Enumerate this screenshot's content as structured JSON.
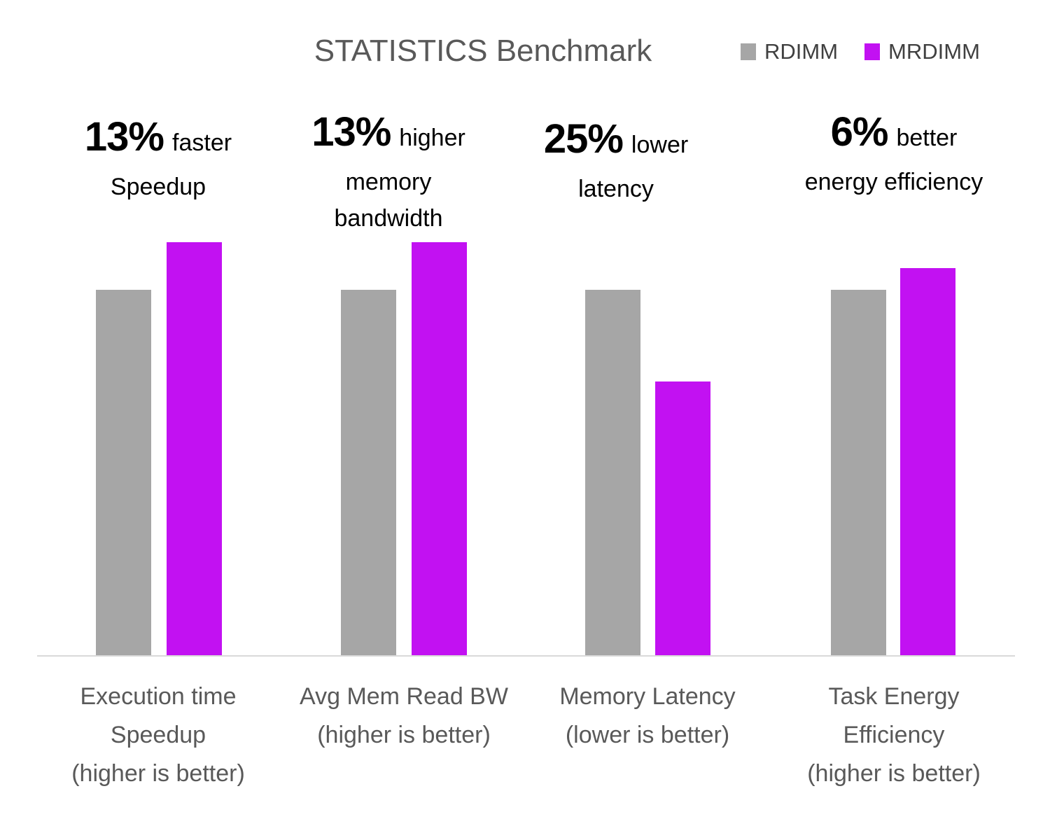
{
  "chart_data": {
    "type": "bar",
    "title": "STATISTICS Benchmark",
    "legend_position": "top-right",
    "grid": false,
    "y_axis_hidden": true,
    "ylim": [
      0,
      1.15
    ],
    "series_names": [
      "RDIMM",
      "MRDIMM"
    ],
    "series_colors": [
      "#A6A6A6",
      "#C211F2"
    ],
    "categories": [
      "Execution time Speedup (higher is better)",
      "Avg Mem Read BW (higher is better)",
      "Memory Latency (lower is better)",
      "Task Energy Efficiency (higher is better)"
    ],
    "category_lines": [
      [
        "Execution time",
        "Speedup",
        "(higher is better)"
      ],
      [
        "Avg Mem Read BW",
        "(higher is better)"
      ],
      [
        "Memory Latency",
        "(lower is better)"
      ],
      [
        "Task Energy",
        "Efficiency",
        "(higher is better)"
      ]
    ],
    "series": [
      {
        "name": "RDIMM",
        "values": [
          1.0,
          1.0,
          1.0,
          1.0
        ]
      },
      {
        "name": "MRDIMM",
        "values": [
          1.13,
          1.13,
          0.75,
          1.06
        ]
      }
    ],
    "annotations": [
      {
        "big": "13%",
        "small": "faster",
        "rest": [
          "Speedup"
        ]
      },
      {
        "big": "13%",
        "small": "higher",
        "rest": [
          "memory",
          "bandwidth"
        ]
      },
      {
        "big": "25%",
        "small": "lower",
        "rest": [
          "latency"
        ]
      },
      {
        "big": "6%",
        "small": "better",
        "rest": [
          "energy efficiency"
        ]
      }
    ],
    "axis_line_color": "#D9D9D9",
    "title_color": "#595959",
    "label_color": "#595959",
    "annotation_color": "#000000"
  }
}
